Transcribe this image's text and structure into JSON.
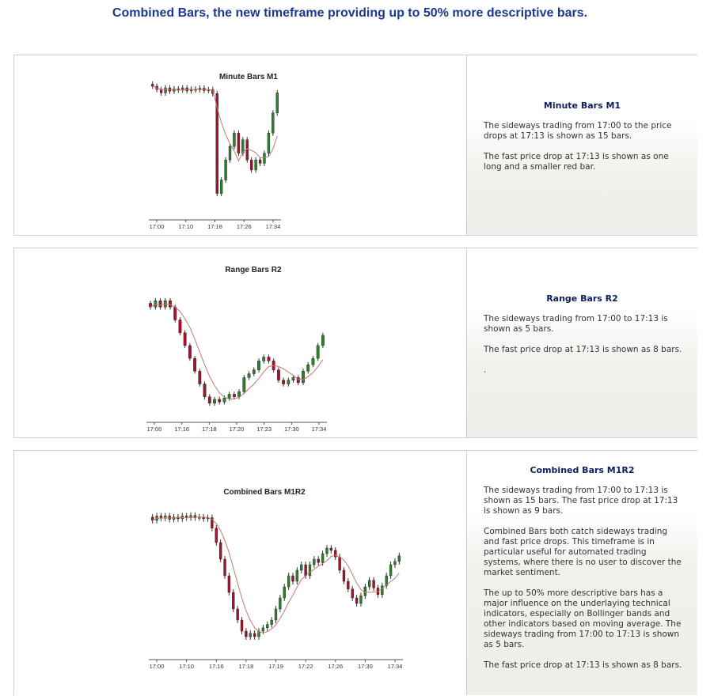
{
  "headline": "Combined Bars, the new timeframe providing up to 50% more descriptive bars.",
  "colors": {
    "headline": "#1a3a8f",
    "up": "#2f7d2f",
    "down": "#a3122a",
    "ma": "#c27a70",
    "axis": "#555555"
  },
  "panels": [
    {
      "title": "Minute Bars M1",
      "paragraphs": [
        "The sideways trading from 17:00 to the price drops at 17:13 is shown  as 15 bars.",
        "The fast price drop at 17:13 is shown as one long and a smaller red bar."
      ]
    },
    {
      "title": "Range Bars R2",
      "paragraphs": [
        "The sideways trading from 17:00 to 17:13 is shown as 5 bars.",
        "The fast price drop at 17:13 is shown as 8 bars.",
        "."
      ]
    },
    {
      "title": "Combined Bars M1R2",
      "paragraphs": [
        "The sideways trading from 17:00 to 17:13 is shown as 15 bars. The fast price drop at 17:13 is shown as 9 bars.",
        "Combined Bars both catch sideways trading and fast price drops. This timeframe is in particular useful for automated trading systems, where there is no user to discover the market sentiment.",
        "The up to 50% more descriptive bars has a major influence on the underlaying technical indicators, especially on Bollinger bands and other indicators based on moving average. The sideways trading from 17:00 to 17:13 is shown as 5 bars.",
        "The fast price drop at 17:13 is shown as 8 bars."
      ]
    }
  ],
  "chart_data": [
    {
      "type": "candlestick",
      "title": "Minute Bars M1",
      "x_tick_labels": [
        "17:00",
        "17:10",
        "17:18",
        "17:26",
        "17:34"
      ],
      "close": [
        100,
        99,
        98,
        99.5,
        98.5,
        99.2,
        98.8,
        99.5,
        98.6,
        99.1,
        98.9,
        99.4,
        98.7,
        99.0,
        97.8,
        68,
        72,
        78,
        82,
        86,
        80,
        84,
        78,
        75,
        78,
        77,
        80,
        86,
        92,
        98
      ],
      "ylim": [
        62,
        104
      ]
    },
    {
      "type": "candlestick",
      "title": "Range Bars R2",
      "x_tick_labels": [
        "17:00",
        "17:16",
        "17:18",
        "17:20",
        "17:23",
        "17:30",
        "17:34"
      ],
      "close": [
        100,
        101,
        100,
        101,
        100,
        98,
        96,
        94,
        92,
        90,
        88,
        86,
        85,
        85.6,
        85.2,
        85.8,
        86.4,
        86,
        86.8,
        89,
        89.6,
        90.2,
        91.6,
        92.2,
        91.6,
        90.2,
        88.6,
        88,
        88.6,
        89,
        88.2,
        90,
        91,
        92,
        94,
        95.6
      ],
      "ylim": [
        83,
        103
      ]
    },
    {
      "type": "candlestick",
      "title": "Combined Bars M1R2",
      "x_tick_labels": [
        "17:00",
        "17:10",
        "17:16",
        "17:18",
        "17:19",
        "17:22",
        "17:26",
        "17:30",
        "17:34"
      ],
      "close": [
        100,
        100.8,
        100.4,
        100.8,
        100.2,
        100.6,
        100.3,
        100.8,
        100.5,
        100.9,
        100.5,
        100.6,
        100.3,
        100.5,
        98.6,
        96,
        93,
        90,
        87,
        84,
        82,
        80,
        79,
        79.6,
        79,
        80,
        80.6,
        81.2,
        82,
        84,
        86,
        88,
        90,
        89,
        91,
        92,
        90,
        92,
        93,
        92.4,
        94,
        95,
        94.6,
        93.4,
        91,
        89,
        87.6,
        86,
        85,
        86.4,
        88,
        89.2,
        87.8,
        86.6,
        88.2,
        90,
        92,
        92.6,
        93.6
      ],
      "ylim": [
        76,
        104
      ]
    }
  ]
}
